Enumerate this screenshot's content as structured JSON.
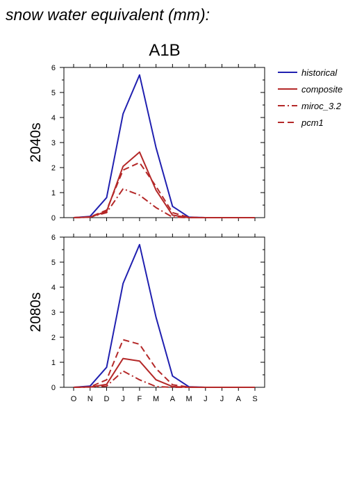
{
  "page": {
    "title": "snow water equivalent (mm):",
    "subtitle": "A1B"
  },
  "colors": {
    "historical": "#2020b0",
    "future": "#b42828",
    "axis": "#000000"
  },
  "legend": [
    {
      "name": "historical",
      "color": "#2020b0",
      "dash": "solid"
    },
    {
      "name": "composite",
      "color": "#b42828",
      "dash": "solid"
    },
    {
      "name": "miroc_3.2",
      "color": "#b42828",
      "dash": "dashdot"
    },
    {
      "name": "pcm1",
      "color": "#b42828",
      "dash": "dashed"
    }
  ],
  "chart_data": [
    {
      "type": "line",
      "row_label": "2040s",
      "categories": [
        "O",
        "N",
        "D",
        "J",
        "F",
        "M",
        "A",
        "M",
        "J",
        "J",
        "A",
        "S"
      ],
      "yticks": [
        "0",
        "1",
        "2",
        "3",
        "4",
        "5",
        "6"
      ],
      "ylim": [
        0,
        6
      ],
      "series": [
        {
          "name": "historical",
          "values": [
            0,
            0.05,
            0.8,
            4.15,
            5.7,
            2.8,
            0.45,
            0.02,
            0,
            0,
            0,
            0
          ]
        },
        {
          "name": "composite",
          "values": [
            0,
            0.02,
            0.25,
            2.05,
            2.62,
            1.1,
            0.1,
            0,
            0,
            0,
            0,
            0
          ]
        },
        {
          "name": "miroc_3.2",
          "values": [
            0,
            0.02,
            0.2,
            1.15,
            0.9,
            0.4,
            0.02,
            0,
            0,
            0,
            0,
            0
          ]
        },
        {
          "name": "pcm1",
          "values": [
            0,
            0.03,
            0.3,
            1.9,
            2.2,
            1.25,
            0.2,
            0.01,
            0,
            0,
            0,
            0
          ]
        }
      ]
    },
    {
      "type": "line",
      "row_label": "2080s",
      "categories": [
        "O",
        "N",
        "D",
        "J",
        "F",
        "M",
        "A",
        "M",
        "J",
        "J",
        "A",
        "S"
      ],
      "yticks": [
        "0",
        "1",
        "2",
        "3",
        "4",
        "5",
        "6"
      ],
      "ylim": [
        0,
        6
      ],
      "series": [
        {
          "name": "historical",
          "values": [
            0,
            0.05,
            0.8,
            4.15,
            5.7,
            2.8,
            0.45,
            0.02,
            0,
            0,
            0,
            0
          ]
        },
        {
          "name": "composite",
          "values": [
            0,
            0.01,
            0.12,
            1.15,
            1.05,
            0.3,
            0.03,
            0,
            0,
            0,
            0,
            0
          ]
        },
        {
          "name": "miroc_3.2",
          "values": [
            0,
            0.01,
            0.05,
            0.65,
            0.3,
            0.03,
            0,
            0,
            0,
            0,
            0,
            0
          ]
        },
        {
          "name": "pcm1",
          "values": [
            0,
            0.02,
            0.3,
            1.9,
            1.72,
            0.75,
            0.1,
            0.01,
            0,
            0,
            0,
            0
          ]
        }
      ]
    }
  ]
}
